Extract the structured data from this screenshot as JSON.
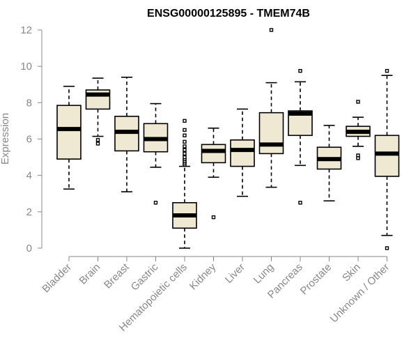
{
  "chart_data": {
    "type": "box",
    "title": "ENSG00000125895 - TMEM74B",
    "xlabel": "",
    "ylabel": "Expression",
    "ylim": [
      0,
      12
    ],
    "yticks": [
      0,
      2,
      4,
      6,
      8,
      10,
      12
    ],
    "grid": false,
    "colors": {
      "box_fill": "#efe8d2",
      "stroke": "#000000",
      "axis": "#888888"
    },
    "categories": [
      "Bladder",
      "Brain",
      "Breast",
      "Gastric",
      "Hematopoietic cells",
      "Kidney",
      "Liver",
      "Lung",
      "Pancreas",
      "Prostate",
      "Skin",
      "Unknown / Other"
    ],
    "boxes": [
      {
        "name": "Bladder",
        "whisker_low": 3.25,
        "q1": 4.9,
        "median": 6.55,
        "q3": 7.85,
        "whisker_high": 8.9,
        "outliers": []
      },
      {
        "name": "Brain",
        "whisker_low": 6.15,
        "q1": 7.65,
        "median": 8.45,
        "q3": 8.7,
        "whisker_high": 9.35,
        "outliers": [
          5.95,
          5.75
        ]
      },
      {
        "name": "Breast",
        "whisker_low": 3.1,
        "q1": 5.35,
        "median": 6.4,
        "q3": 7.25,
        "whisker_high": 9.4,
        "outliers": []
      },
      {
        "name": "Gastric",
        "whisker_low": 4.45,
        "q1": 5.3,
        "median": 6.0,
        "q3": 6.85,
        "whisker_high": 7.95,
        "outliers": [
          2.5
        ]
      },
      {
        "name": "Hematopoietic cells",
        "whisker_low": 0.0,
        "q1": 1.1,
        "median": 1.8,
        "q3": 2.5,
        "whisker_high": 4.5,
        "outliers": [
          4.6,
          4.7,
          4.8,
          4.9,
          5.0,
          5.2,
          5.4,
          5.6,
          5.85,
          6.2,
          6.5,
          7.0
        ]
      },
      {
        "name": "Kidney",
        "whisker_low": 3.9,
        "q1": 4.7,
        "median": 5.35,
        "q3": 5.7,
        "whisker_high": 6.6,
        "outliers": [
          1.7
        ]
      },
      {
        "name": "Liver",
        "whisker_low": 2.85,
        "q1": 4.5,
        "median": 5.4,
        "q3": 5.95,
        "whisker_high": 7.65,
        "outliers": []
      },
      {
        "name": "Lung",
        "whisker_low": 3.35,
        "q1": 5.2,
        "median": 5.7,
        "q3": 7.45,
        "whisker_high": 9.1,
        "outliers": [
          12.0
        ]
      },
      {
        "name": "Pancreas",
        "whisker_low": 4.55,
        "q1": 6.2,
        "median": 7.4,
        "q3": 7.55,
        "whisker_high": 9.15,
        "outliers": [
          9.75,
          2.5
        ]
      },
      {
        "name": "Prostate",
        "whisker_low": 2.6,
        "q1": 4.35,
        "median": 4.9,
        "q3": 5.55,
        "whisker_high": 6.75,
        "outliers": []
      },
      {
        "name": "Skin",
        "whisker_low": 5.6,
        "q1": 6.15,
        "median": 6.4,
        "q3": 6.7,
        "whisker_high": 7.2,
        "outliers": [
          8.05,
          5.1,
          4.95
        ]
      },
      {
        "name": "Unknown / Other",
        "whisker_low": 0.7,
        "q1": 3.95,
        "median": 5.2,
        "q3": 6.2,
        "whisker_high": 9.5,
        "outliers": [
          9.75,
          0.0
        ]
      }
    ]
  }
}
